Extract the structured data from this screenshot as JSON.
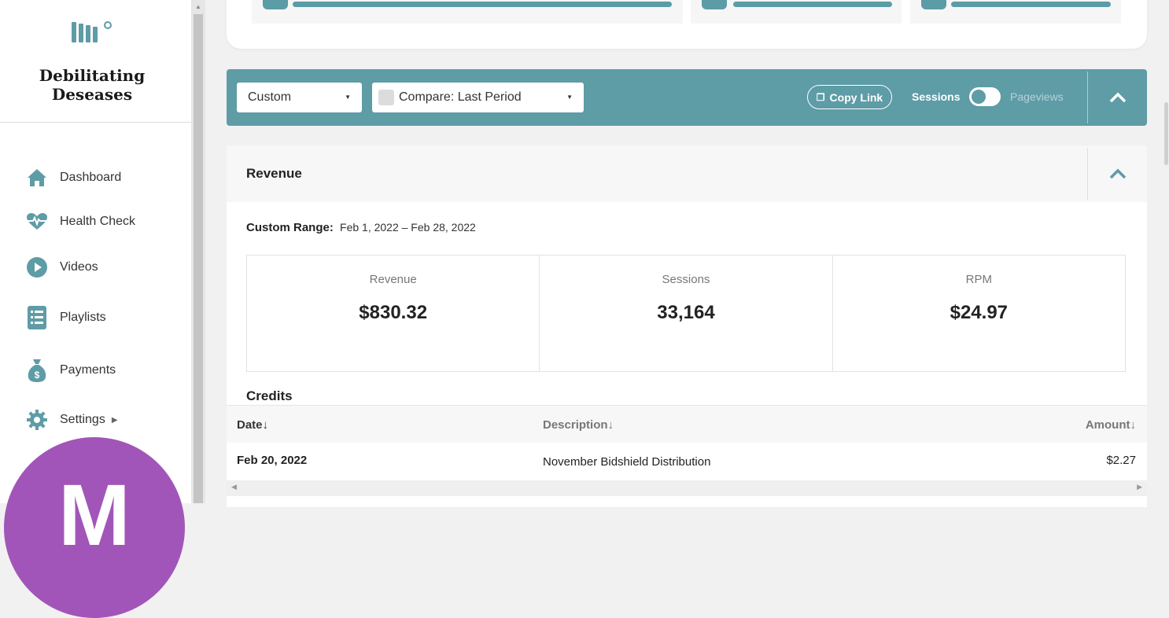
{
  "sidebar": {
    "brand_line1": "Debilitating",
    "brand_line2": "Deseases",
    "items": [
      {
        "label": "Dashboard",
        "icon": "home-icon"
      },
      {
        "label": "Health Check",
        "icon": "heartbeat-icon"
      },
      {
        "label": "Videos",
        "icon": "play-icon"
      },
      {
        "label": "Playlists",
        "icon": "list-icon"
      },
      {
        "label": "Payments",
        "icon": "money-bag-icon"
      },
      {
        "label": "Settings",
        "icon": "gear-icon"
      }
    ],
    "avatar_letter": "M",
    "avatar_color": "#a255b8"
  },
  "filters": {
    "range_select": "Custom",
    "compare_select": "Compare: Last Period",
    "copy_link": "Copy Link",
    "toggle_left": "Sessions",
    "toggle_right": "Pageviews"
  },
  "revenue": {
    "title": "Revenue",
    "range_label": "Custom Range:",
    "range_value": "Feb 1, 2022 – Feb 28, 2022",
    "metrics": [
      {
        "label": "Revenue",
        "value": "$830.32"
      },
      {
        "label": "Sessions",
        "value": "33,164"
      },
      {
        "label": "RPM",
        "value": "$24.97"
      }
    ]
  },
  "credits": {
    "title": "Credits",
    "columns": [
      "Date↓",
      "Description↓",
      "Amount↓"
    ],
    "rows": [
      {
        "date": "Feb 20, 2022",
        "description": "November Bidshield Distribution",
        "amount": "$2.27"
      }
    ]
  },
  "colors": {
    "accent": "#5e9ca6",
    "avatar": "#a255b8"
  }
}
